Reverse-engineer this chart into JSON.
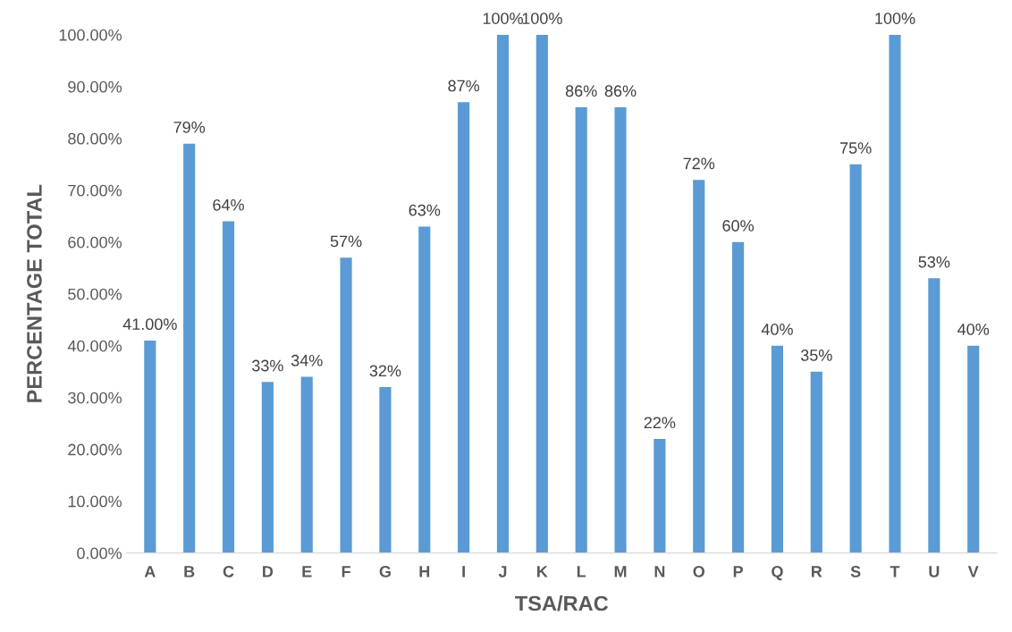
{
  "chart_data": {
    "type": "bar",
    "xlabel": "TSA/RAC",
    "ylabel": "PERCENTAGE TOTAL",
    "categories": [
      "A",
      "B",
      "C",
      "D",
      "E",
      "F",
      "G",
      "H",
      "I",
      "J",
      "K",
      "L",
      "M",
      "N",
      "O",
      "P",
      "Q",
      "R",
      "S",
      "T",
      "U",
      "V"
    ],
    "values": [
      41,
      79,
      64,
      33,
      34,
      57,
      32,
      63,
      87,
      100,
      100,
      86,
      86,
      22,
      72,
      60,
      40,
      35,
      75,
      100,
      53,
      40
    ],
    "value_labels": [
      "41.00%",
      "79%",
      "64%",
      "33%",
      "34%",
      "57%",
      "32%",
      "63%",
      "87%",
      "100%",
      "100%",
      "86%",
      "86%",
      "22%",
      "72%",
      "60%",
      "40%",
      "35%",
      "75%",
      "100%",
      "53%",
      "40%"
    ],
    "color": "#5b9bd5",
    "ylim": [
      0,
      100
    ],
    "yticks": [
      {
        "value": 0,
        "label": "0.00%"
      },
      {
        "value": 10,
        "label": "10.00%"
      },
      {
        "value": 20,
        "label": "20.00%"
      },
      {
        "value": 30,
        "label": "30.00%"
      },
      {
        "value": 40,
        "label": "40.00%"
      },
      {
        "value": 50,
        "label": "50.00%"
      },
      {
        "value": 60,
        "label": "60.00%"
      },
      {
        "value": 70,
        "label": "70.00%"
      },
      {
        "value": 80,
        "label": "80.00%"
      },
      {
        "value": 90,
        "label": "90.00%"
      },
      {
        "value": 100,
        "label": "100.00%"
      }
    ]
  }
}
